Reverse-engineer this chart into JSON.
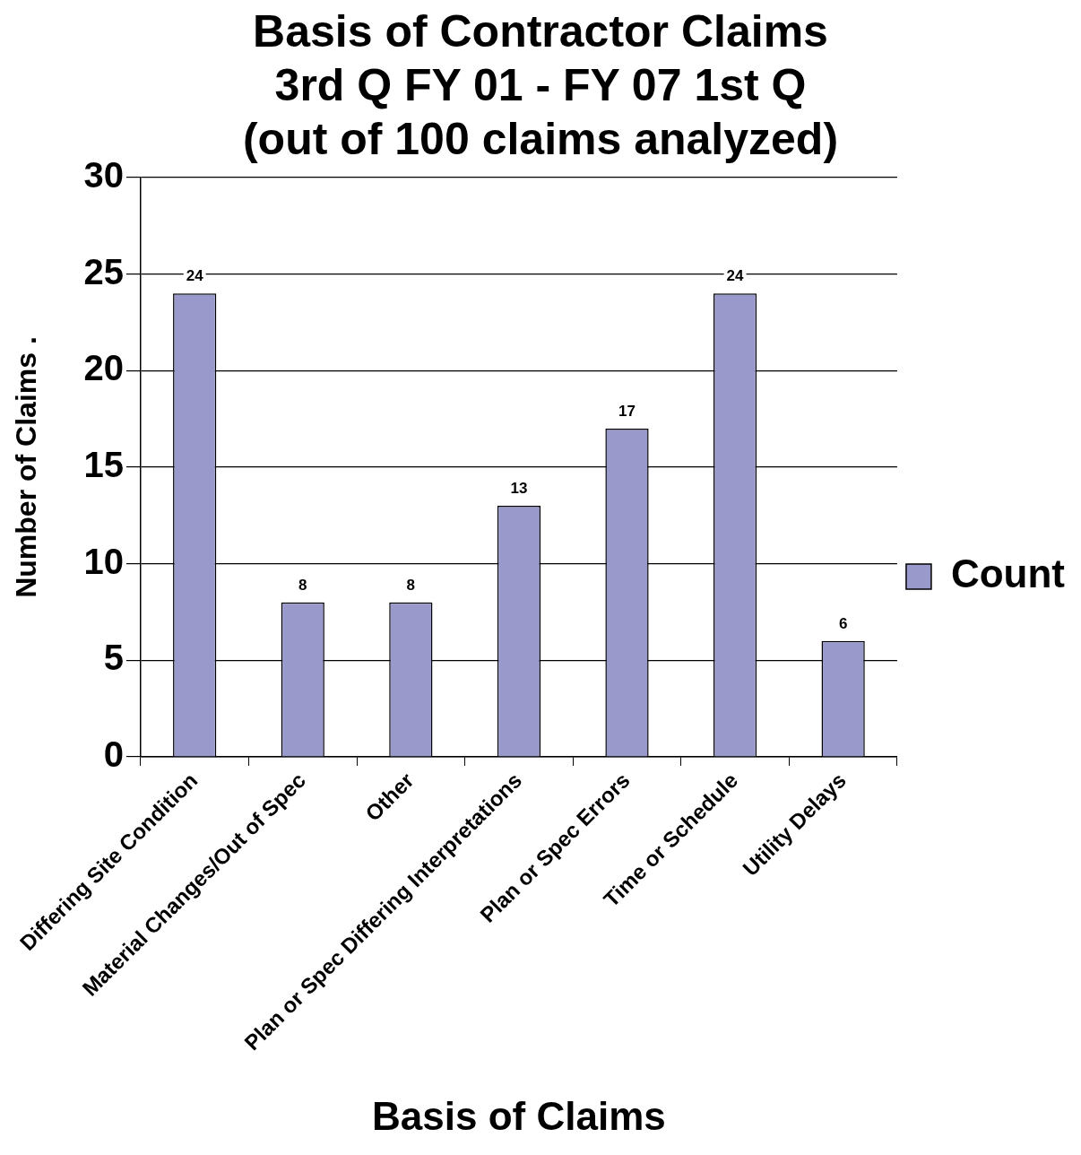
{
  "chart_data": {
    "type": "bar",
    "title": [
      "Basis of Contractor Claims",
      "3rd Q FY 01 - FY 07 1st Q",
      "(out of 100 claims analyzed)"
    ],
    "xlabel": "Basis of Claims",
    "ylabel": "Number of Claims .",
    "categories": [
      "Differing Site Condition",
      "Material Changes/Out of Spec",
      "Other",
      "Plan or Spec Differing Interpretations",
      "Plan or Spec Errors",
      "Time or Schedule",
      "Utility Delays"
    ],
    "series": [
      {
        "name": "Count",
        "color": "#9999cc",
        "values": [
          24,
          8,
          8,
          13,
          17,
          24,
          6
        ]
      }
    ],
    "ylim": [
      0,
      30
    ],
    "yticks": [
      0,
      5,
      10,
      15,
      20,
      25,
      30
    ],
    "grid": "y",
    "legend": "right",
    "data_labels": true
  }
}
